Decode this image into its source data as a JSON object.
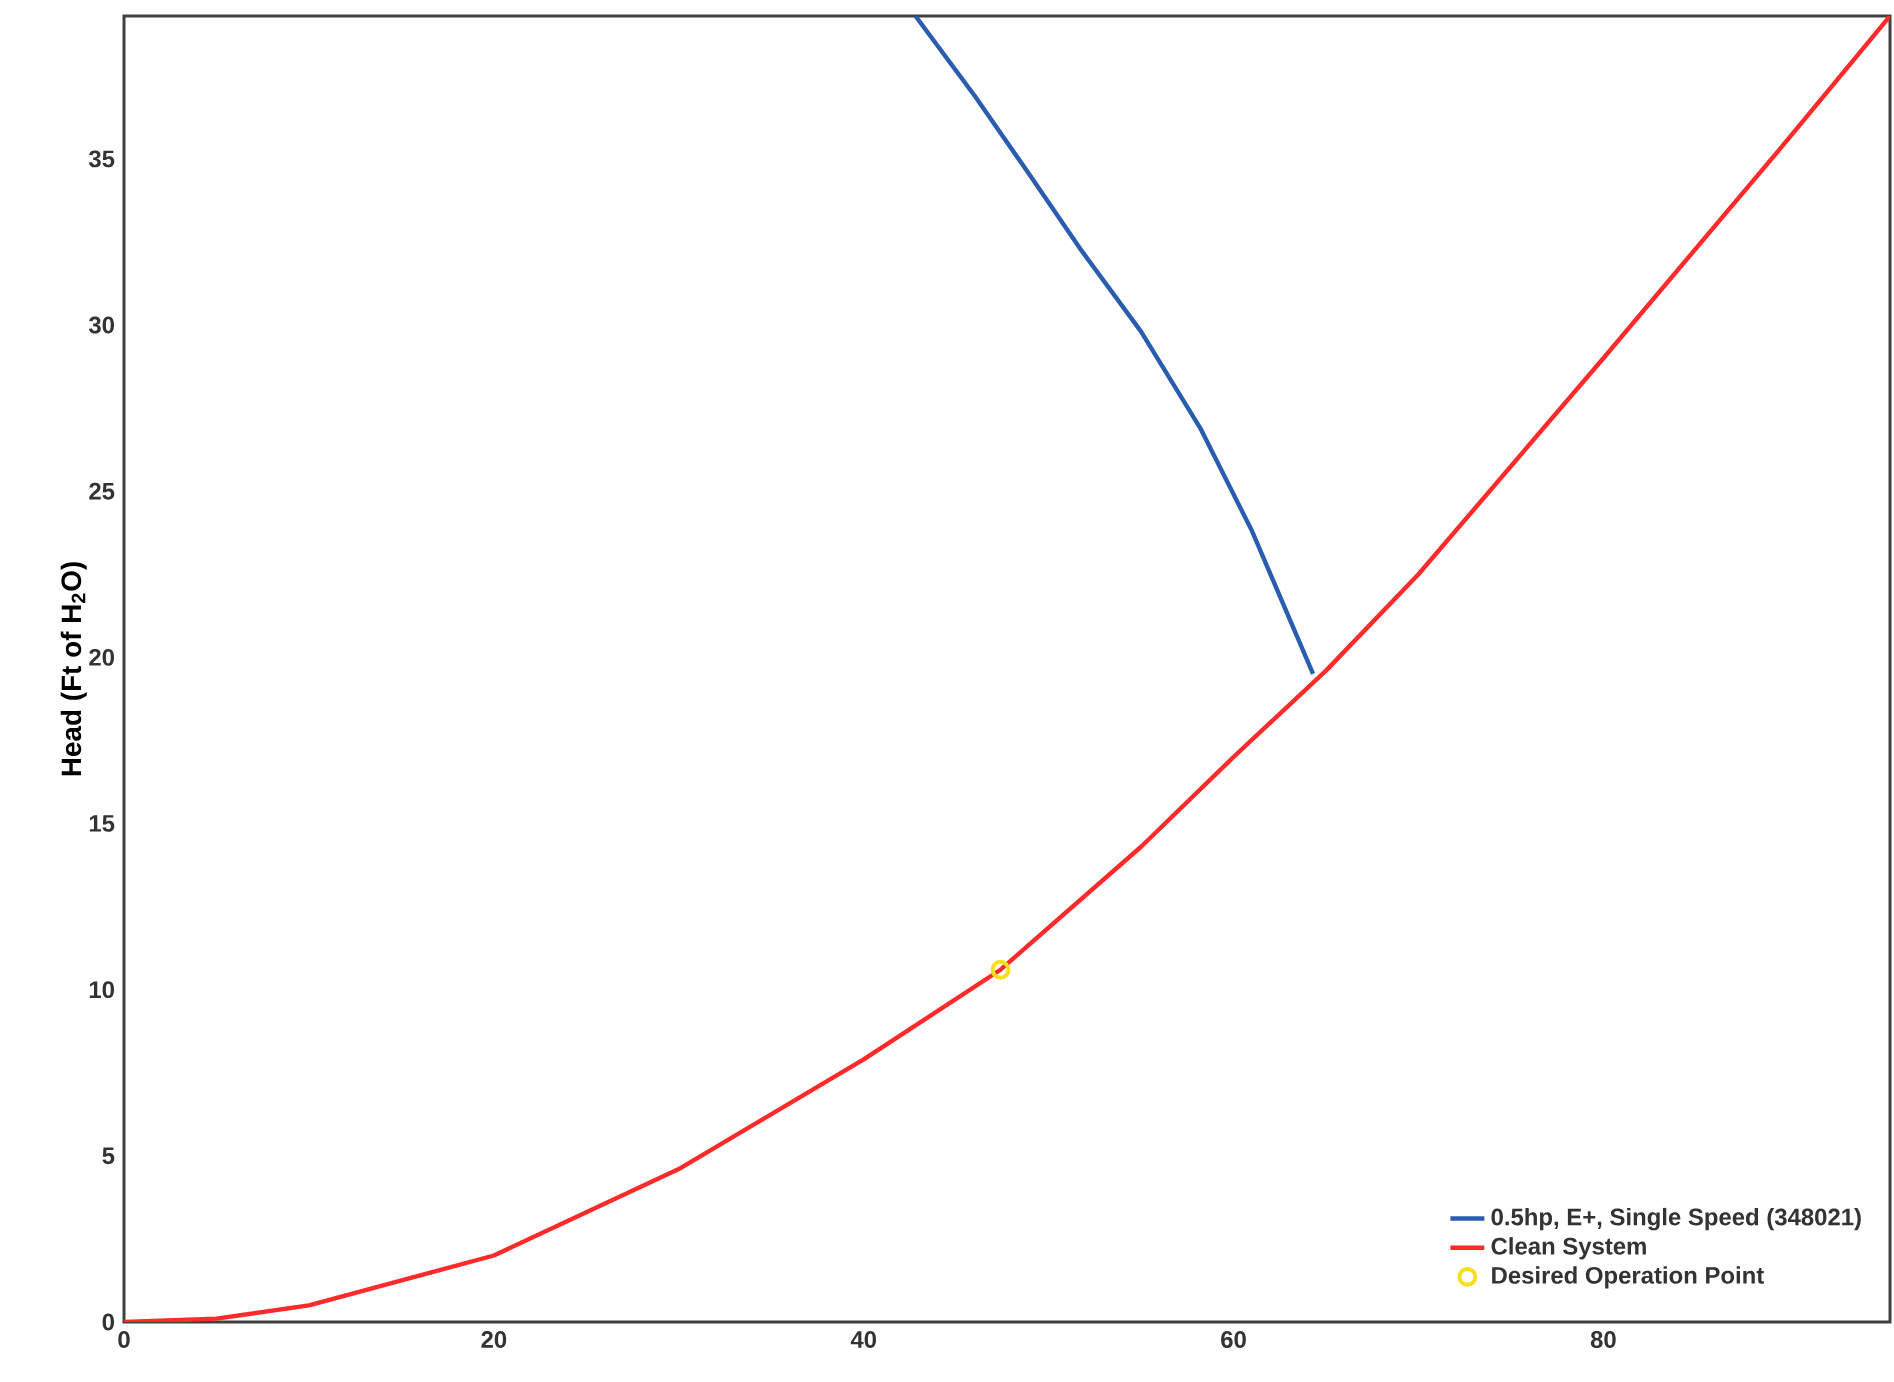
{
  "chart_data": {
    "type": "line",
    "ylabel": "Head (Ft of H$_{2}$O)",
    "xlim": [
      0,
      95.5
    ],
    "ylim": [
      0,
      39.3
    ],
    "xticks": [
      0,
      20,
      40,
      60,
      80
    ],
    "yticks": [
      0,
      5,
      10,
      15,
      20,
      25,
      30,
      35
    ],
    "grid": false,
    "legend": "bottom right",
    "series": [
      {
        "name": "0.5hp, E+, Single Speed (348021)",
        "color": "#2a5db0",
        "x": [
          42.8,
          46,
          49,
          51.7,
          55,
          58.2,
          61,
          64.3
        ],
        "values": [
          39.3,
          36.9,
          34.5,
          32.3,
          29.8,
          26.9,
          23.8,
          19.5
        ]
      },
      {
        "name": "Clean System",
        "color": "#ff2a2a",
        "x": [
          0,
          5,
          10,
          20,
          30,
          40,
          47.4,
          55,
          60,
          65,
          70,
          80,
          90,
          95.5
        ],
        "values": [
          0,
          0.1,
          0.5,
          2.0,
          4.6,
          7.9,
          10.6,
          14.3,
          17.0,
          19.6,
          22.5,
          29.0,
          35.6,
          39.3
        ]
      },
      {
        "name": "Desired Operation Point",
        "type": "scatter",
        "marker": "circle",
        "color": "#f5e11b",
        "x": [
          47.4
        ],
        "values": [
          10.6
        ]
      }
    ]
  }
}
